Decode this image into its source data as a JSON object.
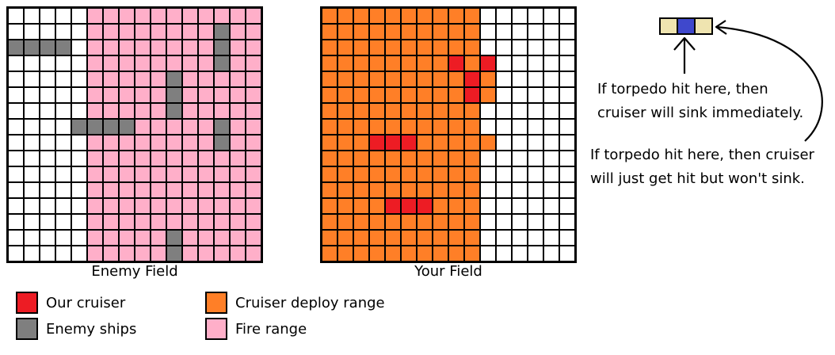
{
  "enemy_field": {
    "label": "Enemy Field",
    "rows": [
      "wwwwwppppppppppp",
      "wwwwwppppppppgpp",
      "ggggwppppppppgpp",
      "wwwwwppppppppgpp",
      "wwwwwpppppgppppp",
      "wwwwwpppppgppppp",
      "wwwwwpppppgppppp",
      "wwwwggggpppppgpp",
      "wwwwwppppppppgpp",
      "wwwwwppppppppppp",
      "wwwwwppppppppppp",
      "wwwwwppppppppppp",
      "wwwwwppppppppppp",
      "wwwwwppppppppppp",
      "wwwwwpppppgppppp",
      "wwwwwpppppgppppp"
    ]
  },
  "your_field": {
    "label": "Your Field",
    "rows": [
      "oooooooooowwwwww",
      "oooooooooowwwwww",
      "oooooooooowwwwww",
      "oooooooororwwwww",
      "ooooooooorowwwww",
      "ooooooooorowwwww",
      "oooooooooowwwwww",
      "oooooooooowwwwww",
      "ooorrrooooowwwww",
      "oooooooooowwwwww",
      "oooooooooowwwwww",
      "oooooooooowwwwww",
      "oooorrrooowwwwww",
      "oooooooooowwwwww",
      "oooooooooowwwwww",
      "oooooooooowwwwww"
    ]
  },
  "legend": [
    {
      "label": "Our cruiser",
      "color": "#ed1c24"
    },
    {
      "label": "Enemy ships",
      "color": "#7f7f7f"
    },
    {
      "label": "Cruiser deploy range",
      "color": "#ff7f27"
    },
    {
      "label": "Fire range",
      "color": "#ffafc9"
    }
  ],
  "cruiser_diagram": {
    "segments": [
      "#efe4b0",
      "#3f48cc",
      "#efe4b0"
    ]
  },
  "notes": {
    "center_hit_line1": "If torpedo hit here, then",
    "center_hit_line2": "cruiser will sink immediately.",
    "side_hit_line1": "If torpedo hit here, then cruiser",
    "side_hit_line2": "will just get hit but won't sink."
  },
  "colors": {
    "white": "#ffffff",
    "pink": "#ffafc9",
    "gray": "#7f7f7f",
    "orange": "#ff7f27",
    "red": "#ed1c24"
  }
}
